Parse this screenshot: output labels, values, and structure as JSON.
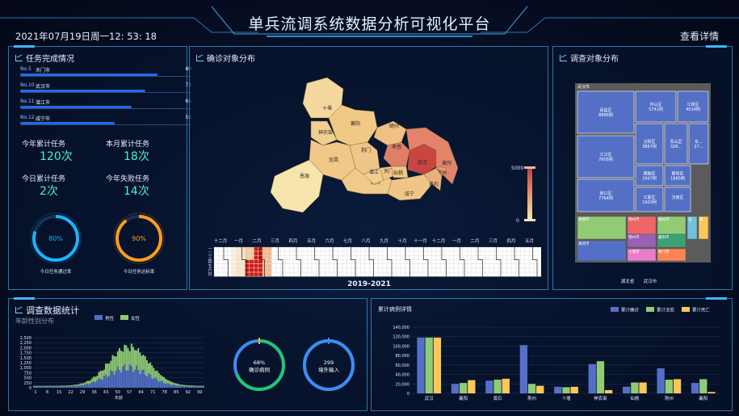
{
  "header": {
    "title": "单兵流调系统数据分析可视化平台",
    "datetime": "2021年07月19日周一12: 53: 18",
    "detail_button": "查看详情"
  },
  "colors": {
    "accent": "#3fb6ff",
    "cyan": "#4cf0d0",
    "male": "#5470c6",
    "female": "#91cc75",
    "dead": "#fac858"
  },
  "tasks": {
    "title": "任务完成情况",
    "rows": [
      {
        "rank": "No.5",
        "name": "天门市",
        "value": 80,
        "pct": 0.8
      },
      {
        "rank": "No.10",
        "name": "武汉市",
        "value": 73,
        "pct": 0.73
      },
      {
        "rank": "No.11",
        "name": "潜江市",
        "value": 65,
        "pct": 0.65
      },
      {
        "rank": "No.12",
        "name": "咸宁市",
        "value": 55,
        "pct": 0.55
      }
    ],
    "stats": [
      {
        "label": "今年累计任务",
        "value": "120次"
      },
      {
        "label": "本月累计任务",
        "value": "18次"
      },
      {
        "label": "今日累计任务",
        "value": "2次"
      },
      {
        "label": "今年失败任务",
        "value": "14次"
      }
    ],
    "rings": [
      {
        "value": "80%",
        "pct": 0.8,
        "label": "今日任务通过率",
        "color": "#19b3ff"
      },
      {
        "value": "90%",
        "pct": 0.9,
        "label": "今日任务达标率",
        "color": "#ff9c1a"
      }
    ]
  },
  "map": {
    "title": "确诊对象分布",
    "visual_max": "5000",
    "visual_min": "0",
    "regions": [
      "十堰",
      "襄阳",
      "随州",
      "神农架",
      "宜昌",
      "荆门",
      "孝感",
      "武汉",
      "鄂州",
      "恩施",
      "荆州",
      "潜江",
      "天门",
      "仙桃",
      "咸宁",
      "黄石",
      "黄冈"
    ],
    "calendar_months": [
      "十二月",
      "一月",
      "二月",
      "三月",
      "四月",
      "五月",
      "六月",
      "七月",
      "八月",
      "九月",
      "十月",
      "十一月",
      "十二月",
      "一月",
      "二月",
      "三月",
      "四月",
      "五月"
    ],
    "calendar_days": [
      "一",
      "二",
      "三",
      "四",
      "五",
      "六",
      "日"
    ],
    "calendar_year": "2019-2021"
  },
  "treemap": {
    "title": "调查对象分布",
    "root": "武汉市",
    "wuhan": [
      {
        "name": "武昌区",
        "value": "8886例"
      },
      {
        "name": "洪山区",
        "value": "5741例"
      },
      {
        "name": "江岸区",
        "value": "4524例"
      },
      {
        "name": "江汉区",
        "value": "7805例"
      },
      {
        "name": "汉阳区",
        "value": "3867例"
      },
      {
        "name": "青山区",
        "value": "326..."
      },
      {
        "name": "东...",
        "value": "27..."
      },
      {
        "name": "硚口区",
        "value": "7764例"
      },
      {
        "name": "黄陂区",
        "value": "2947例"
      },
      {
        "name": "蔡甸区",
        "value": "1885例"
      },
      {
        "name": "江夏区",
        "value": "1903例"
      },
      {
        "name": "汉南区",
        "value": ""
      }
    ],
    "others": [
      "孝感市",
      "荆州市",
      "随州市",
      "宜",
      "咸",
      "黄冈市",
      "鄂州市",
      "襄阳市",
      "荆门市",
      "十堰市"
    ],
    "breadcrumb": [
      "湖北省",
      "武汉市"
    ]
  },
  "age_chart": {
    "title": "调查数据统计",
    "subtitle": "年龄性别分布",
    "legend": [
      "男性",
      "女性"
    ],
    "xlabel": "年龄",
    "x_ticks": [
      "1",
      "8",
      "15",
      "22",
      "29",
      "36",
      "43",
      "50",
      "57",
      "64",
      "71",
      "78",
      "85",
      "92",
      "99"
    ],
    "y_ticks": [
      "2,500",
      "2,250",
      "2,000",
      "1,750",
      "1,500",
      "1,250",
      "1,000",
      "750",
      "500",
      "250",
      "0"
    ]
  },
  "rings2": [
    {
      "value": "68%",
      "label": "确诊病例",
      "pct": 0.68,
      "color": "#1ec776",
      "track": "#3d8df0"
    },
    {
      "value": "299",
      "label": "境外输入",
      "pct": 1,
      "color": "#3d8df0",
      "track": "#3d8df0"
    }
  ],
  "chart_data": {
    "type": "bar",
    "title": "累计病例详情",
    "categories": [
      "武汉",
      "襄阳",
      "黄石",
      "荆州",
      "十堰",
      "神农架",
      "仙桃",
      "荆州",
      "襄阳"
    ],
    "series": [
      {
        "name": "累计确诊",
        "values": [
          118000,
          20000,
          27000,
          102000,
          14000,
          62000,
          14000,
          53000,
          22000
        ]
      },
      {
        "name": "累计治愈",
        "values": [
          118000,
          22000,
          29000,
          20000,
          13000,
          68000,
          23000,
          29000,
          30000
        ]
      },
      {
        "name": "累计死亡",
        "values": [
          118000,
          28000,
          31000,
          16000,
          14000,
          7000,
          23000,
          30000,
          3000
        ]
      }
    ],
    "y_ticks": [
      "140,000",
      "120,000",
      "100,000",
      "80,000",
      "60,000",
      "40,000",
      "20,000",
      "0"
    ],
    "ylim": [
      0,
      140000
    ]
  }
}
